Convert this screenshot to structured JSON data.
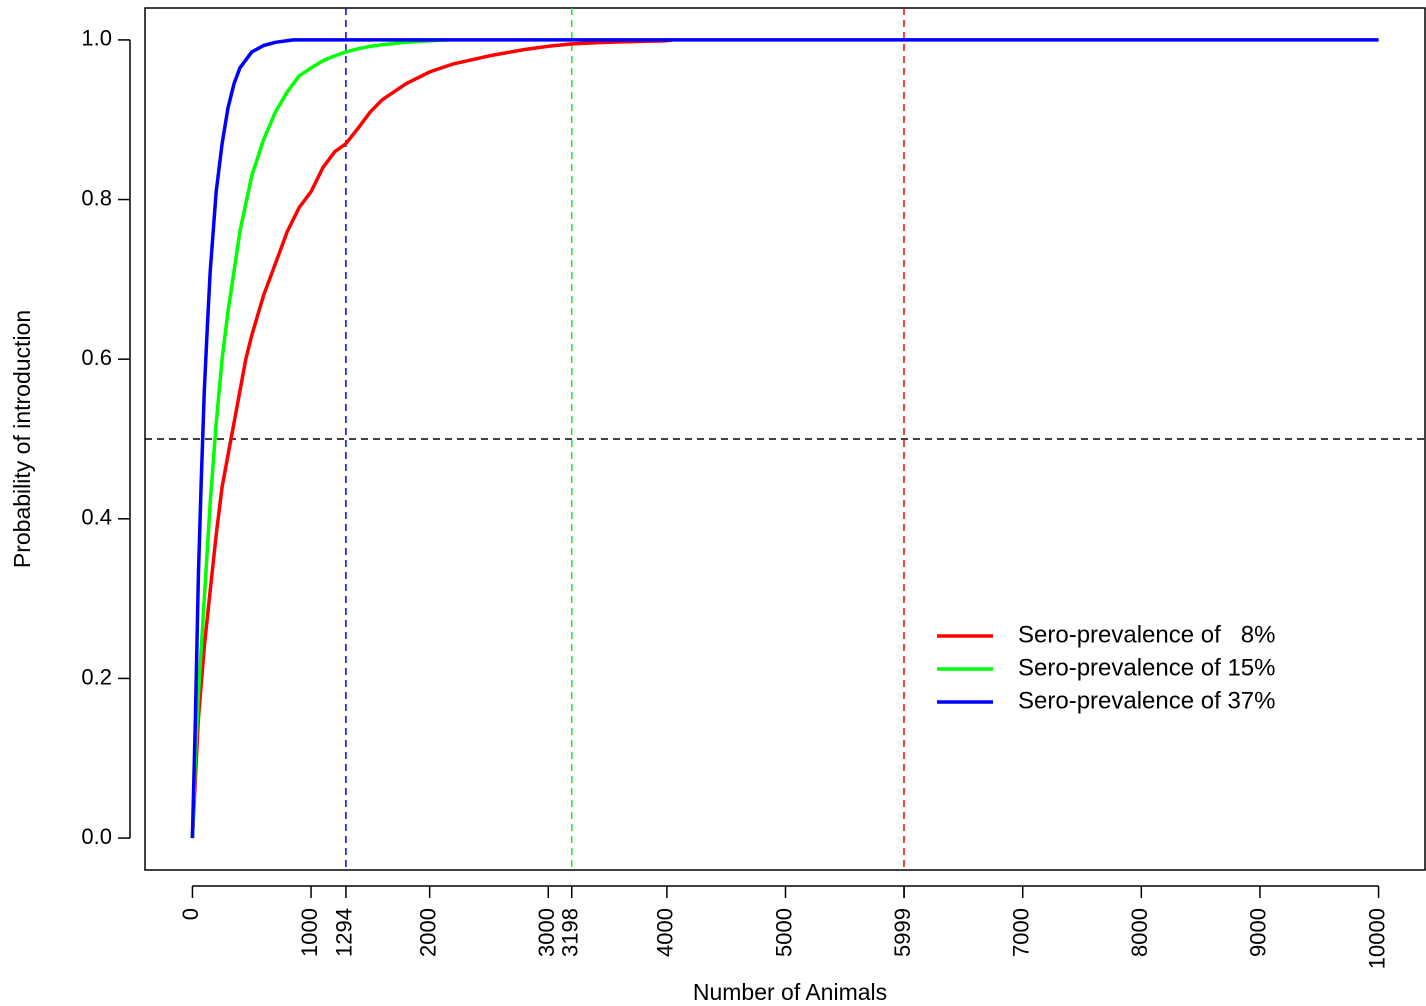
{
  "chart_data": {
    "type": "line",
    "title": "",
    "xlabel": "Number of Animals",
    "ylabel": "Probability of introduction",
    "xlim": [
      -400,
      10400
    ],
    "ylim": [
      -0.04,
      1.04
    ],
    "x_ticks": [
      0,
      1000,
      2000,
      3000,
      4000,
      5000,
      6000,
      7000,
      8000,
      9000,
      10000
    ],
    "x_tick_labels": [
      "0",
      "1000",
      "2000",
      "3000",
      "4000",
      "5000",
      "",
      "7000",
      "8000",
      "9000",
      "10000"
    ],
    "extra_x_ticks": [
      1294,
      3198,
      5999
    ],
    "extra_x_tick_labels": [
      "1294",
      "3198",
      "5999"
    ],
    "y_ticks": [
      0.0,
      0.2,
      0.4,
      0.6,
      0.8,
      1.0
    ],
    "y_tick_labels": [
      "0.0",
      "0.2",
      "0.4",
      "0.6",
      "0.8",
      "1.0"
    ],
    "grid": false,
    "legend_position": "right",
    "series": [
      {
        "name": "Sero-prevalence of   8%",
        "color": "#ff0000",
        "x": [
          0,
          50,
          100,
          150,
          200,
          250,
          300,
          350,
          400,
          450,
          500,
          600,
          700,
          800,
          900,
          1000,
          1100,
          1200,
          1294,
          1400,
          1500,
          1600,
          1800,
          2000,
          2200,
          2500,
          2800,
          3000,
          3198,
          3500,
          4000,
          4050
        ],
        "values": [
          0.0,
          0.15,
          0.24,
          0.31,
          0.38,
          0.44,
          0.48,
          0.52,
          0.56,
          0.6,
          0.63,
          0.68,
          0.72,
          0.76,
          0.79,
          0.81,
          0.84,
          0.86,
          0.87,
          0.89,
          0.91,
          0.925,
          0.945,
          0.96,
          0.97,
          0.98,
          0.988,
          0.992,
          0.995,
          0.997,
          0.999,
          1.0
        ]
      },
      {
        "name": "Sero-prevalence of 15%",
        "color": "#00ff00",
        "x": [
          0,
          25,
          50,
          100,
          150,
          200,
          250,
          300,
          350,
          400,
          500,
          600,
          700,
          800,
          900,
          1000,
          1100,
          1200,
          1294,
          1400,
          1500,
          1600,
          1800,
          2000,
          2150
        ],
        "values": [
          0.0,
          0.1,
          0.18,
          0.3,
          0.42,
          0.52,
          0.6,
          0.66,
          0.71,
          0.76,
          0.83,
          0.875,
          0.91,
          0.935,
          0.955,
          0.965,
          0.974,
          0.98,
          0.985,
          0.989,
          0.992,
          0.994,
          0.997,
          0.999,
          1.0
        ]
      },
      {
        "name": "Sero-prevalence of 37%",
        "color": "#0000ff",
        "x": [
          0,
          10,
          25,
          50,
          75,
          100,
          125,
          150,
          175,
          200,
          250,
          300,
          350,
          400,
          500,
          600,
          700,
          850,
          1000,
          1294,
          2000,
          4000,
          6000,
          8000,
          10000
        ],
        "values": [
          0.0,
          0.06,
          0.15,
          0.33,
          0.45,
          0.56,
          0.64,
          0.71,
          0.76,
          0.81,
          0.87,
          0.915,
          0.945,
          0.965,
          0.985,
          0.993,
          0.997,
          1.0,
          1.0,
          1.0,
          1.0,
          1.0,
          1.0,
          1.0,
          1.0
        ]
      }
    ],
    "reference_lines": [
      {
        "axis": "y",
        "value": 0.5,
        "color": "#000000"
      },
      {
        "axis": "x",
        "value": 1294,
        "color": "#0000ff"
      },
      {
        "axis": "x",
        "value": 3198,
        "color": "#00ff00"
      },
      {
        "axis": "x",
        "value": 5999,
        "color": "#ff0000"
      }
    ]
  }
}
